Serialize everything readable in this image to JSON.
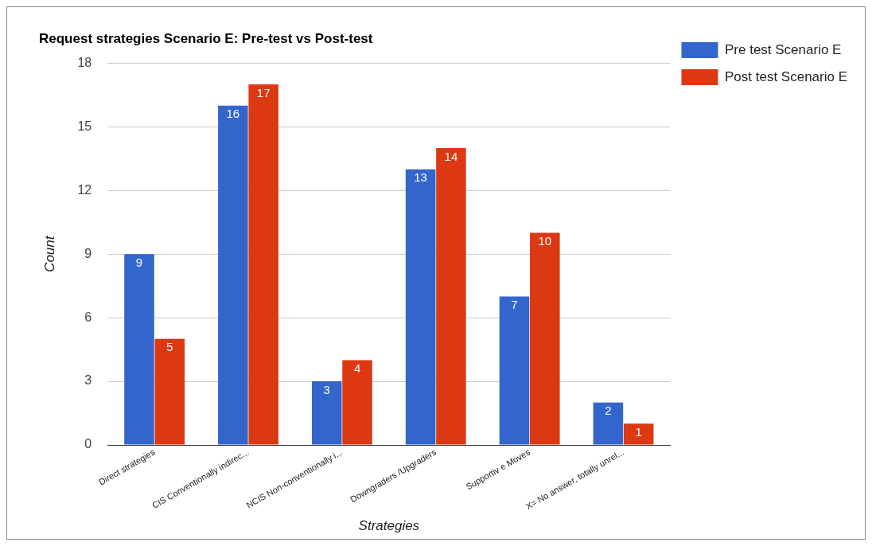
{
  "chart_data": {
    "type": "bar",
    "title": "Request strategies Scenario E: Pre-test vs Post-test",
    "xlabel": "Strategies",
    "ylabel": "Count",
    "categories": [
      "Direct strategies",
      "CIS Conventionally indirec...",
      "NCIS Non-conventionally i...",
      "Downgraders /Upgraders",
      "Supportiv e Moves",
      "X= No answer, totally unrel..."
    ],
    "series": [
      {
        "name": "Pre test Scenario E",
        "color": "#3366cc",
        "values": [
          9,
          16,
          3,
          13,
          7,
          2
        ]
      },
      {
        "name": "Post test Scenario E",
        "color": "#dc3912",
        "values": [
          5,
          17,
          4,
          14,
          10,
          1
        ]
      }
    ],
    "ylim": [
      0,
      18
    ],
    "yticks": [
      0,
      3,
      6,
      9,
      12,
      15,
      18
    ],
    "grid": "y",
    "legend": "right",
    "data_labels": true
  }
}
